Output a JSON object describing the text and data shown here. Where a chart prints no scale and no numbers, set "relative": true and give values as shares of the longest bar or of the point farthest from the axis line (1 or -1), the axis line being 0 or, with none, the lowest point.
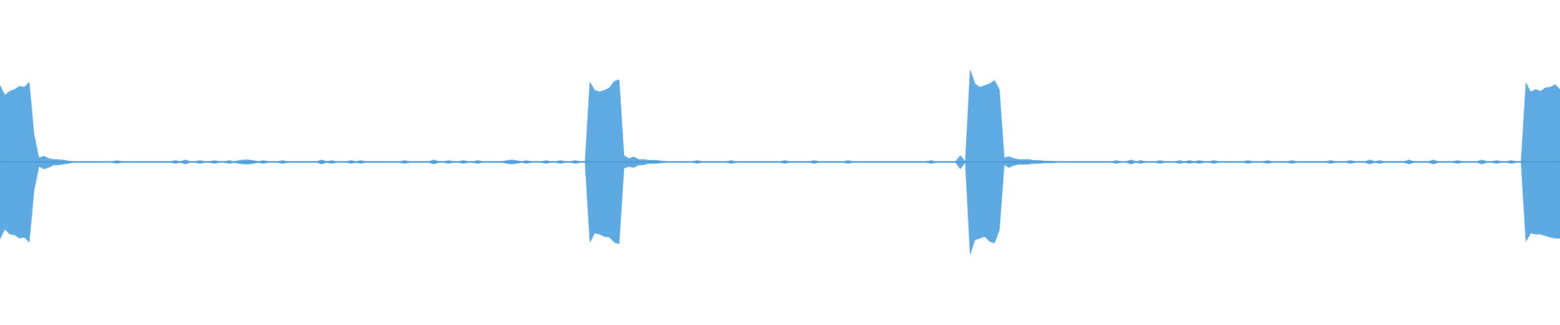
{
  "chart_data": {
    "type": "area",
    "relative": true,
    "categories": [
      null,
      null,
      null,
      null,
      null,
      null,
      null,
      null,
      null,
      null,
      null,
      null,
      null,
      null,
      null,
      null,
      null,
      null,
      null,
      null,
      null,
      null,
      null,
      null,
      null,
      null,
      null,
      null,
      null,
      null,
      null,
      null,
      null,
      null,
      null,
      null,
      null,
      null,
      null,
      null,
      null,
      null,
      null,
      null,
      null,
      null,
      null,
      null,
      null,
      null,
      null,
      null,
      null,
      null,
      null,
      null,
      null,
      null,
      null,
      null,
      null,
      null,
      null,
      null,
      null,
      null,
      null,
      null,
      null,
      null,
      null,
      null,
      null,
      null,
      null,
      null,
      null,
      null,
      null,
      null,
      null,
      null,
      null,
      null,
      null,
      null,
      null,
      null,
      null,
      null,
      null,
      null,
      null,
      null,
      null,
      null,
      null,
      null,
      null,
      null,
      null,
      null,
      null,
      null,
      null,
      null,
      null,
      null,
      null,
      null,
      null,
      null,
      null,
      null,
      null,
      null,
      null,
      null,
      null,
      null,
      null,
      null,
      null,
      null,
      null,
      null,
      null,
      null,
      null,
      null,
      null,
      null,
      null,
      null,
      null,
      null,
      null,
      null,
      null,
      null,
      null,
      null,
      null,
      null,
      null,
      null,
      null,
      null,
      null,
      null,
      null,
      null,
      null,
      null,
      null,
      null,
      null,
      null,
      null,
      null,
      null,
      null,
      null,
      null,
      null,
      null,
      null,
      null,
      null,
      null,
      null,
      null,
      null,
      null,
      null,
      null,
      null,
      null,
      null,
      null,
      null,
      null,
      null,
      null,
      null,
      null,
      null,
      null,
      null,
      null,
      null,
      null,
      null,
      null,
      null,
      null,
      null,
      null,
      null,
      null,
      null,
      null,
      null,
      null,
      null,
      null,
      null,
      null,
      null,
      null,
      null,
      null,
      null,
      null,
      null,
      null,
      null,
      null,
      null,
      null,
      null,
      null,
      null,
      null,
      null,
      null,
      null,
      null,
      null,
      null,
      null,
      null,
      null,
      null,
      null,
      null,
      null,
      null,
      null,
      null,
      null,
      null,
      null,
      null,
      null,
      null,
      null,
      null,
      null,
      null,
      null,
      null,
      null,
      null,
      null,
      null,
      null,
      null,
      null,
      null,
      null,
      null,
      null,
      null,
      null,
      null,
      null,
      null,
      null,
      null,
      null,
      null,
      null,
      null,
      null,
      null,
      null,
      null,
      null,
      null,
      null,
      null,
      null,
      null,
      null,
      null,
      null,
      null,
      null,
      null,
      null,
      null,
      null,
      null,
      null,
      null,
      null,
      null,
      null,
      null,
      null,
      null,
      null,
      null,
      null,
      null,
      null,
      null,
      null,
      null,
      null,
      null,
      null,
      null,
      null,
      null,
      null,
      null,
      null,
      null,
      null
    ],
    "series": [
      {
        "color": "#5eabe3",
        "values": [
          0.83,
          0.724,
          0.768,
          0.786,
          0.822,
          0.812,
          0.866,
          0.294,
          0.046,
          0.064,
          0.038,
          0.028,
          0.028,
          0.02,
          0.012,
          0.006,
          0.006,
          0.006,
          0.006,
          0.006,
          0.006,
          0.006,
          0.006,
          0.006,
          0.016,
          0.006,
          0.006,
          0.006,
          0.006,
          0.006,
          0.006,
          0.006,
          0.006,
          0.006,
          0.006,
          0.006,
          0.016,
          0.006,
          0.024,
          0.006,
          0.006,
          0.016,
          0.006,
          0.006,
          0.016,
          0.006,
          0.006,
          0.016,
          0.006,
          0.016,
          0.024,
          0.024,
          0.016,
          0.006,
          0.016,
          0.006,
          0.006,
          0.006,
          0.016,
          0.006,
          0.006,
          0.006,
          0.006,
          0.006,
          0.006,
          0.006,
          0.024,
          0.006,
          0.016,
          0.006,
          0.006,
          0.006,
          0.016,
          0.006,
          0.016,
          0.006,
          0.006,
          0.006,
          0.006,
          0.006,
          0.006,
          0.006,
          0.006,
          0.016,
          0.006,
          0.006,
          0.006,
          0.006,
          0.006,
          0.024,
          0.006,
          0.006,
          0.016,
          0.006,
          0.006,
          0.016,
          0.006,
          0.006,
          0.016,
          0.006,
          0.006,
          0.006,
          0.006,
          0.006,
          0.016,
          0.024,
          0.016,
          0.006,
          0.016,
          0.006,
          0.006,
          0.006,
          0.016,
          0.006,
          0.006,
          0.016,
          0.006,
          0.006,
          0.016,
          0.006,
          0.006,
          0.866,
          0.778,
          0.76,
          0.778,
          0.804,
          0.874,
          0.892,
          0.072,
          0.038,
          0.056,
          0.028,
          0.028,
          0.02,
          0.02,
          0.016,
          0.01,
          0.006,
          0.006,
          0.006,
          0.006,
          0.006,
          0.006,
          0.016,
          0.006,
          0.006,
          0.006,
          0.006,
          0.006,
          0.006,
          0.016,
          0.006,
          0.006,
          0.006,
          0.006,
          0.006,
          0.006,
          0.006,
          0.006,
          0.006,
          0.006,
          0.016,
          0.006,
          0.006,
          0.006,
          0.006,
          0.006,
          0.016,
          0.006,
          0.006,
          0.006,
          0.006,
          0.006,
          0.006,
          0.016,
          0.006,
          0.006,
          0.006,
          0.006,
          0.006,
          0.006,
          0.006,
          0.006,
          0.006,
          0.006,
          0.006,
          0.006,
          0.006,
          0.006,
          0.006,
          0.006,
          0.016,
          0.006,
          0.006,
          0.006,
          0.006,
          0.006,
          0.072,
          0.006,
          0.998,
          0.848,
          0.812,
          0.83,
          0.848,
          0.884,
          0.786,
          0.046,
          0.058,
          0.038,
          0.028,
          0.028,
          0.028,
          0.018,
          0.018,
          0.012,
          0.01,
          0.01,
          0.006,
          0.006,
          0.006,
          0.006,
          0.006,
          0.006,
          0.006,
          0.006,
          0.006,
          0.006,
          0.006,
          0.006,
          0.016,
          0.006,
          0.006,
          0.024,
          0.006,
          0.016,
          0.006,
          0.006,
          0.006,
          0.016,
          0.006,
          0.006,
          0.006,
          0.016,
          0.006,
          0.016,
          0.006,
          0.016,
          0.006,
          0.006,
          0.016,
          0.006,
          0.006,
          0.006,
          0.006,
          0.006,
          0.006,
          0.016,
          0.006,
          0.006,
          0.006,
          0.016,
          0.006,
          0.006,
          0.006,
          0.006,
          0.016,
          0.006,
          0.006,
          0.006,
          0.006,
          0.006,
          0.006,
          0.006,
          0.016,
          0.006,
          0.006,
          0.006,
          0.016,
          0.006,
          0.006,
          0.006,
          0.024,
          0.006,
          0.016,
          0.006,
          0.006,
          0.006,
          0.006,
          0.006,
          0.024,
          0.006,
          0.006,
          0.006,
          0.006,
          0.024,
          0.006,
          0.006,
          0.006,
          0.006,
          0.016,
          0.006,
          0.006,
          0.006,
          0.006,
          0.024,
          0.006,
          0.006,
          0.016,
          0.006,
          0.006,
          0.016,
          0.006,
          0.006,
          0.858,
          0.76,
          0.786,
          0.768,
          0.804,
          0.812,
          0.84,
          0.786
        ]
      },
      {
        "color": "#5daae2",
        "values": [
          -0.834,
          -0.728,
          -0.782,
          -0.79,
          -0.826,
          -0.816,
          -0.87,
          -0.306,
          -0.05,
          -0.076,
          -0.06,
          -0.032,
          -0.032,
          -0.024,
          -0.016,
          -0.006,
          -0.006,
          -0.006,
          -0.006,
          -0.006,
          -0.006,
          -0.006,
          -0.006,
          -0.006,
          -0.016,
          -0.006,
          -0.006,
          -0.006,
          -0.006,
          -0.006,
          -0.006,
          -0.006,
          -0.006,
          -0.006,
          -0.006,
          -0.006,
          -0.016,
          -0.006,
          -0.024,
          -0.006,
          -0.006,
          -0.016,
          -0.006,
          -0.006,
          -0.016,
          -0.006,
          -0.006,
          -0.016,
          -0.006,
          -0.016,
          -0.024,
          -0.024,
          -0.016,
          -0.006,
          -0.016,
          -0.006,
          -0.006,
          -0.006,
          -0.016,
          -0.006,
          -0.006,
          -0.006,
          -0.006,
          -0.006,
          -0.006,
          -0.006,
          -0.024,
          -0.006,
          -0.016,
          -0.006,
          -0.006,
          -0.006,
          -0.016,
          -0.006,
          -0.016,
          -0.006,
          -0.006,
          -0.006,
          -0.006,
          -0.006,
          -0.006,
          -0.006,
          -0.006,
          -0.016,
          -0.006,
          -0.006,
          -0.006,
          -0.006,
          -0.006,
          -0.024,
          -0.006,
          -0.006,
          -0.016,
          -0.006,
          -0.006,
          -0.016,
          -0.006,
          -0.006,
          -0.016,
          -0.006,
          -0.006,
          -0.006,
          -0.006,
          -0.006,
          -0.016,
          -0.024,
          -0.016,
          -0.006,
          -0.016,
          -0.006,
          -0.006,
          -0.006,
          -0.016,
          -0.006,
          -0.006,
          -0.016,
          -0.006,
          -0.006,
          -0.016,
          -0.006,
          -0.006,
          -0.87,
          -0.772,
          -0.782,
          -0.808,
          -0.816,
          -0.87,
          -0.888,
          -0.068,
          -0.05,
          -0.06,
          -0.032,
          -0.032,
          -0.016,
          -0.016,
          -0.014,
          -0.008,
          -0.006,
          -0.006,
          -0.006,
          -0.006,
          -0.006,
          -0.006,
          -0.016,
          -0.006,
          -0.006,
          -0.006,
          -0.006,
          -0.006,
          -0.006,
          -0.016,
          -0.006,
          -0.006,
          -0.006,
          -0.006,
          -0.006,
          -0.006,
          -0.006,
          -0.006,
          -0.006,
          -0.006,
          -0.016,
          -0.006,
          -0.006,
          -0.006,
          -0.006,
          -0.006,
          -0.016,
          -0.006,
          -0.006,
          -0.006,
          -0.006,
          -0.006,
          -0.006,
          -0.016,
          -0.006,
          -0.006,
          -0.006,
          -0.006,
          -0.006,
          -0.006,
          -0.006,
          -0.006,
          -0.006,
          -0.006,
          -0.006,
          -0.006,
          -0.006,
          -0.006,
          -0.006,
          -0.006,
          -0.016,
          -0.006,
          -0.006,
          -0.006,
          -0.006,
          -0.006,
          -0.076,
          -0.006,
          -1.0,
          -0.844,
          -0.826,
          -0.808,
          -0.862,
          -0.878,
          -0.738,
          -0.032,
          -0.06,
          -0.036,
          -0.026,
          -0.026,
          -0.026,
          -0.016,
          -0.016,
          -0.012,
          -0.01,
          -0.01,
          -0.006,
          -0.006,
          -0.006,
          -0.006,
          -0.006,
          -0.006,
          -0.006,
          -0.006,
          -0.006,
          -0.006,
          -0.006,
          -0.006,
          -0.016,
          -0.006,
          -0.006,
          -0.024,
          -0.006,
          -0.016,
          -0.006,
          -0.006,
          -0.006,
          -0.016,
          -0.006,
          -0.006,
          -0.006,
          -0.016,
          -0.006,
          -0.016,
          -0.006,
          -0.016,
          -0.006,
          -0.006,
          -0.016,
          -0.006,
          -0.006,
          -0.006,
          -0.006,
          -0.006,
          -0.006,
          -0.016,
          -0.006,
          -0.006,
          -0.006,
          -0.016,
          -0.006,
          -0.006,
          -0.006,
          -0.006,
          -0.016,
          -0.006,
          -0.006,
          -0.006,
          -0.006,
          -0.006,
          -0.006,
          -0.006,
          -0.016,
          -0.006,
          -0.006,
          -0.006,
          -0.016,
          -0.006,
          -0.006,
          -0.006,
          -0.024,
          -0.006,
          -0.016,
          -0.006,
          -0.006,
          -0.006,
          -0.006,
          -0.006,
          -0.024,
          -0.006,
          -0.006,
          -0.006,
          -0.006,
          -0.024,
          -0.006,
          -0.006,
          -0.006,
          -0.006,
          -0.016,
          -0.006,
          -0.006,
          -0.006,
          -0.006,
          -0.024,
          -0.006,
          -0.006,
          -0.016,
          -0.006,
          -0.006,
          -0.016,
          -0.006,
          -0.006,
          -0.862,
          -0.772,
          -0.782,
          -0.782,
          -0.8,
          -0.816,
          -0.826,
          -0.826
        ]
      }
    ],
    "ref_lines": [
      {
        "axis": "y",
        "value": 0,
        "color": "#4a96d2"
      }
    ]
  }
}
